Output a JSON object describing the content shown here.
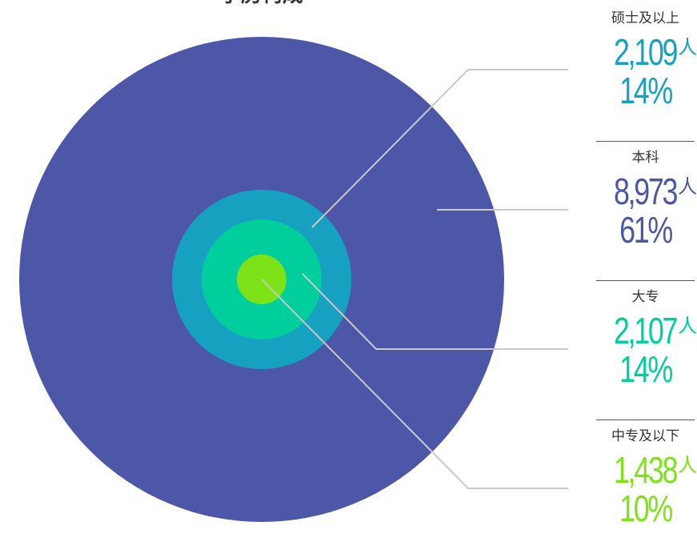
{
  "title": "学历构成",
  "count_unit": "人",
  "chart_data": {
    "type": "pie",
    "layout": "concentric-circles",
    "categories": [
      "硕士及以上",
      "本科",
      "大专",
      "中专及以下"
    ],
    "counts": [
      2109,
      8973,
      2107,
      1438
    ],
    "counts_display": [
      "2,109",
      "8,973",
      "2,107",
      "1,438"
    ],
    "percents": [
      14,
      61,
      14,
      10
    ],
    "percents_display": [
      "14%",
      "61%",
      "14%",
      "10%"
    ],
    "colors": [
      "#16A1C0",
      "#4C57A8",
      "#00CE9C",
      "#7DE318"
    ],
    "circle_order_outer_to_inner": [
      "本科",
      "硕士及以上",
      "大专",
      "中专及以下"
    ],
    "legend_placement": "right"
  }
}
